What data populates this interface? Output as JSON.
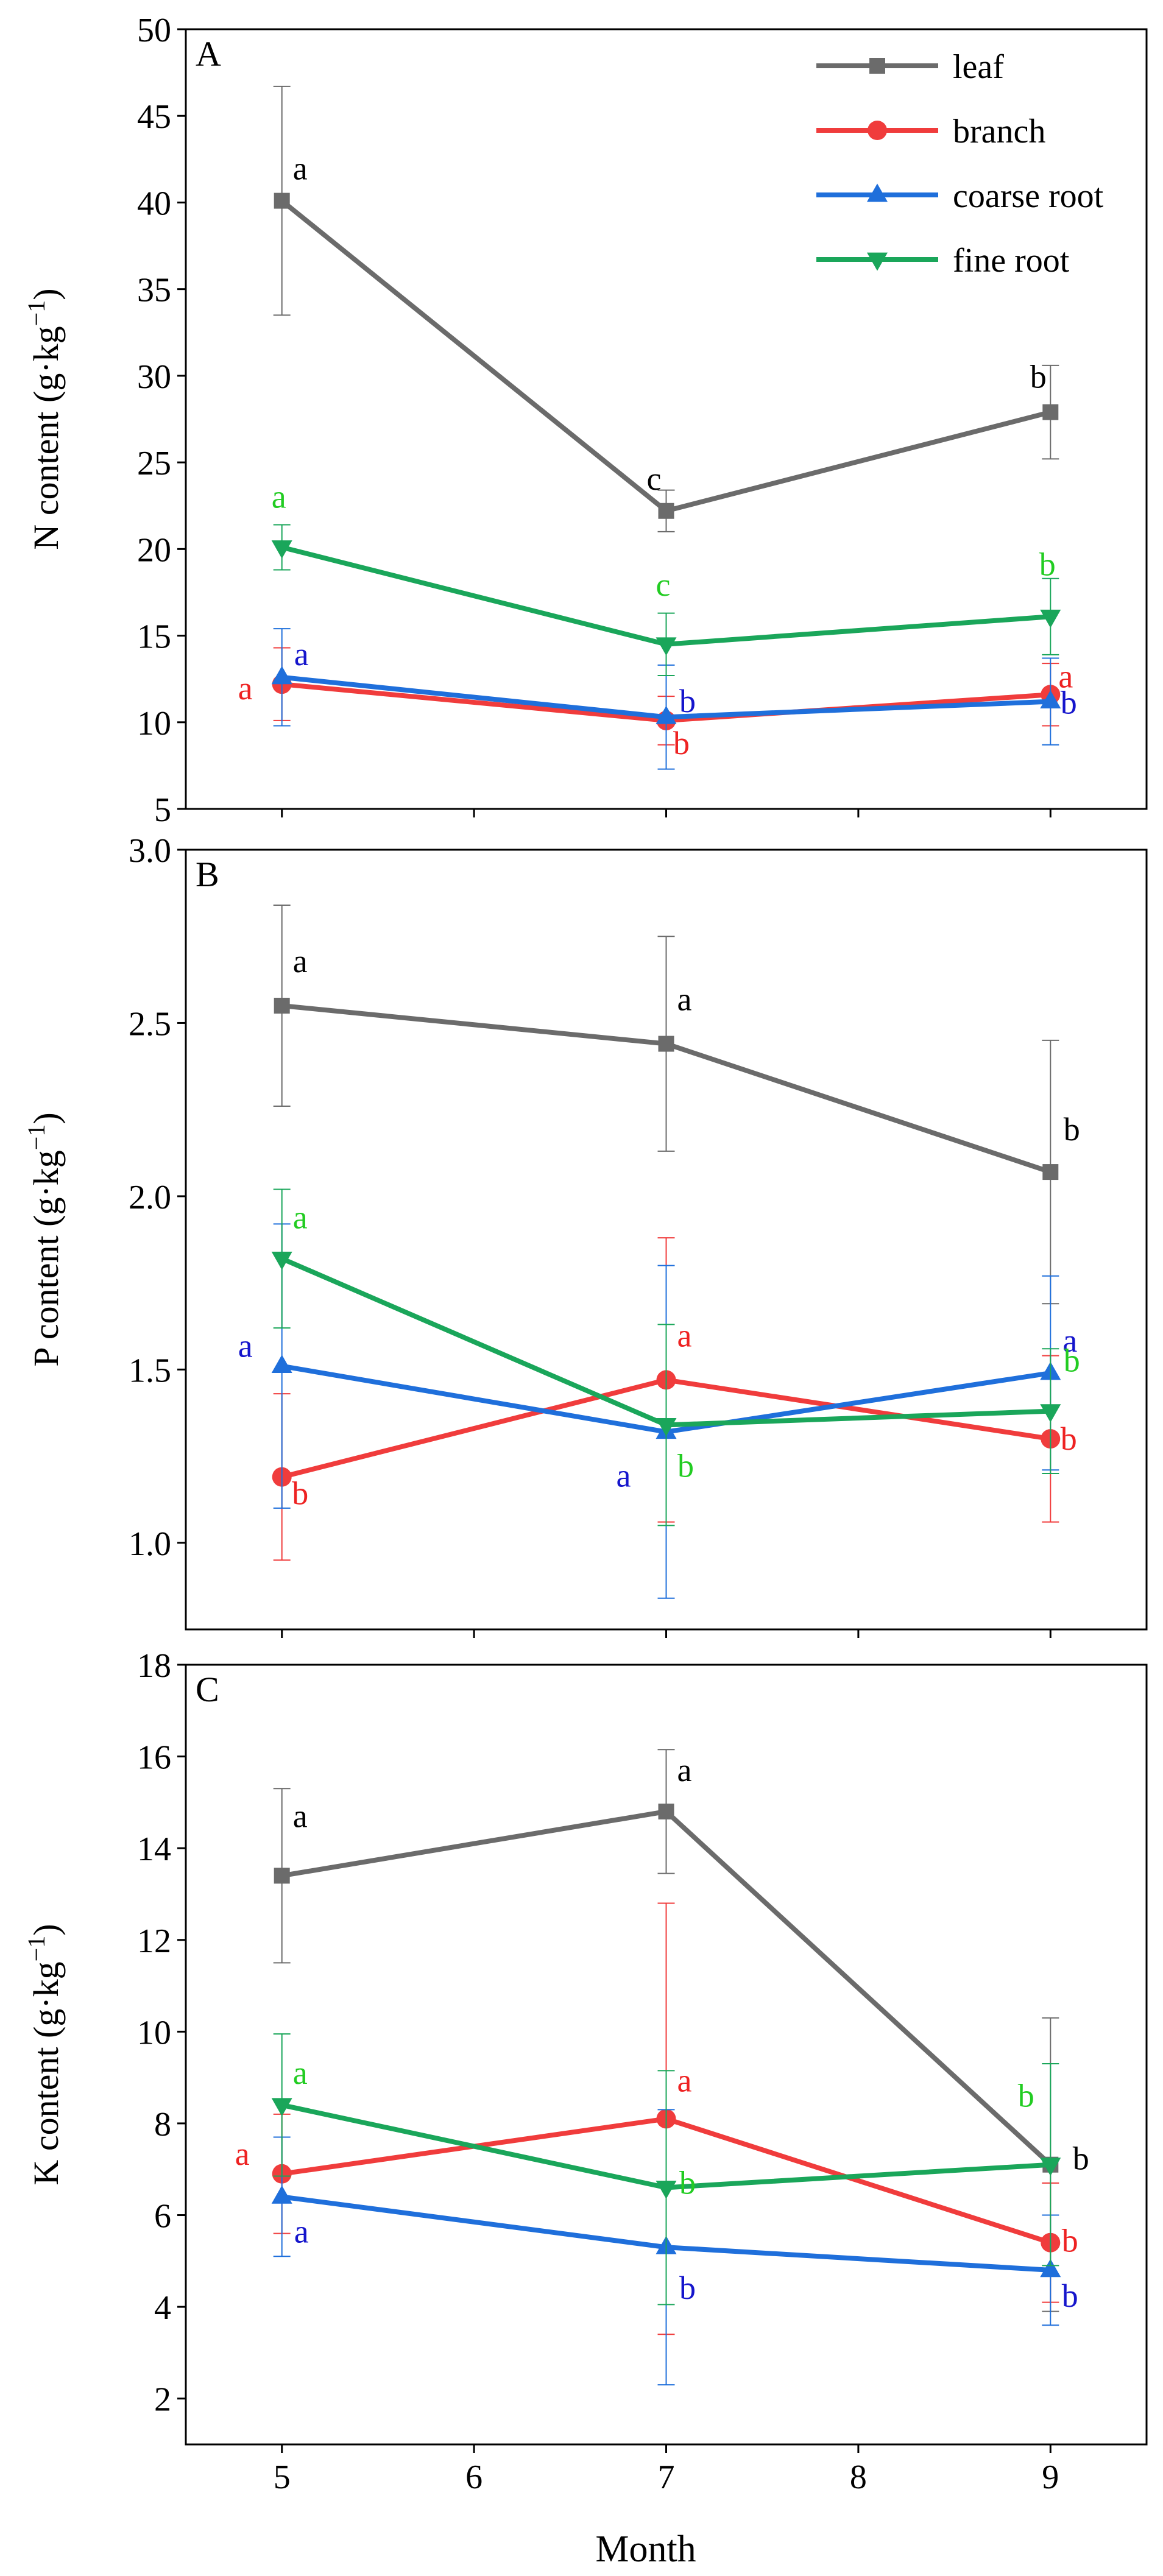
{
  "figure": {
    "xlabel": "Month",
    "x_ticks": [
      5,
      6,
      7,
      8,
      9
    ],
    "x_range": [
      4.5,
      9.5
    ]
  },
  "legend": {
    "placement": "top-right of panel A",
    "entries": [
      {
        "series": "leaf",
        "label": "leaf"
      },
      {
        "series": "branch",
        "label": "branch"
      },
      {
        "series": "coarse",
        "label": "coarse root"
      },
      {
        "series": "fine",
        "label": "fine root"
      }
    ]
  },
  "series_style": {
    "leaf": {
      "color": "#6b6b6b",
      "marker": "square"
    },
    "branch": {
      "color": "#f03c3c",
      "marker": "circle"
    },
    "coarse": {
      "color": "#1f6fdb",
      "marker": "triangle-up"
    },
    "fine": {
      "color": "#1aa65a",
      "marker": "triangle-down"
    }
  },
  "letter_colors": {
    "leaf": "#000000",
    "branch": "#ee2222",
    "coarse": "#1515cc",
    "fine": "#22cc22"
  },
  "chart_data": [
    {
      "type": "line",
      "panel": "A",
      "ylabel": "N content (g·kg",
      "ylabel_sup": "−1",
      "ylabel_close": ")",
      "ylim": [
        5,
        50
      ],
      "yticks": [
        5,
        10,
        15,
        20,
        25,
        30,
        35,
        40,
        45,
        50
      ],
      "x": [
        5,
        7,
        9
      ],
      "series": [
        {
          "key": "leaf",
          "name": "leaf",
          "values": [
            40.1,
            22.2,
            27.9
          ],
          "errors": [
            6.6,
            1.2,
            2.7
          ],
          "letters": [
            "a",
            "c",
            "b"
          ]
        },
        {
          "key": "branch",
          "name": "branch",
          "values": [
            12.2,
            10.1,
            11.6
          ],
          "errors": [
            2.1,
            1.4,
            1.8
          ],
          "letters": [
            "a",
            "b",
            "a"
          ]
        },
        {
          "key": "coarse",
          "name": "coarse root",
          "values": [
            12.6,
            10.3,
            11.2
          ],
          "errors": [
            2.8,
            3.0,
            2.5
          ],
          "letters": [
            "a",
            "b",
            "b"
          ]
        },
        {
          "key": "fine",
          "name": "fine root",
          "values": [
            20.1,
            14.5,
            16.1
          ],
          "errors": [
            1.3,
            1.8,
            2.2
          ],
          "letters": [
            "a",
            "c",
            "b"
          ]
        }
      ]
    },
    {
      "type": "line",
      "panel": "B",
      "ylabel": "P content (g·kg",
      "ylabel_sup": "−1",
      "ylabel_close": ")",
      "ylim": [
        0.75,
        3.0
      ],
      "yticks": [
        1.0,
        1.5,
        2.0,
        2.5,
        3.0
      ],
      "x": [
        5,
        7,
        9
      ],
      "series": [
        {
          "key": "leaf",
          "name": "leaf",
          "values": [
            2.55,
            2.44,
            2.07
          ],
          "errors": [
            0.29,
            0.31,
            0.38
          ],
          "letters": [
            "a",
            "a",
            "b"
          ]
        },
        {
          "key": "branch",
          "name": "branch",
          "values": [
            1.19,
            1.47,
            1.3
          ],
          "errors": [
            0.24,
            0.41,
            0.24
          ],
          "letters": [
            "b",
            "a",
            "b"
          ]
        },
        {
          "key": "coarse",
          "name": "coarse root",
          "values": [
            1.51,
            1.32,
            1.49
          ],
          "errors": [
            0.41,
            0.48,
            0.28
          ],
          "letters": [
            "a",
            "a",
            "a"
          ]
        },
        {
          "key": "fine",
          "name": "fine root",
          "values": [
            1.82,
            1.34,
            1.38
          ],
          "errors": [
            0.2,
            0.29,
            0.18
          ],
          "letters": [
            "a",
            "b",
            "b"
          ]
        }
      ]
    },
    {
      "type": "line",
      "panel": "C",
      "ylabel": "K content (g·kg",
      "ylabel_sup": "−1",
      "ylabel_close": ")",
      "ylim": [
        1,
        18
      ],
      "yticks": [
        2,
        4,
        6,
        8,
        10,
        12,
        14,
        16,
        18
      ],
      "x": [
        5,
        7,
        9
      ],
      "series": [
        {
          "key": "leaf",
          "name": "leaf",
          "values": [
            13.4,
            14.8,
            7.1
          ],
          "errors": [
            1.9,
            1.35,
            3.2
          ],
          "letters": [
            "a",
            "a",
            "b"
          ]
        },
        {
          "key": "branch",
          "name": "branch",
          "values": [
            6.9,
            8.1,
            5.4
          ],
          "errors": [
            1.3,
            4.7,
            1.3
          ],
          "letters": [
            "a",
            "a",
            "b"
          ]
        },
        {
          "key": "coarse",
          "name": "coarse root",
          "values": [
            6.4,
            5.3,
            4.8
          ],
          "errors": [
            1.3,
            3.0,
            1.2
          ],
          "letters": [
            "a",
            "b",
            "b"
          ]
        },
        {
          "key": "fine",
          "name": "fine root",
          "values": [
            8.4,
            6.6,
            7.1
          ],
          "errors": [
            1.55,
            2.55,
            2.2
          ],
          "letters": [
            "a",
            "b",
            "b"
          ]
        }
      ]
    }
  ]
}
